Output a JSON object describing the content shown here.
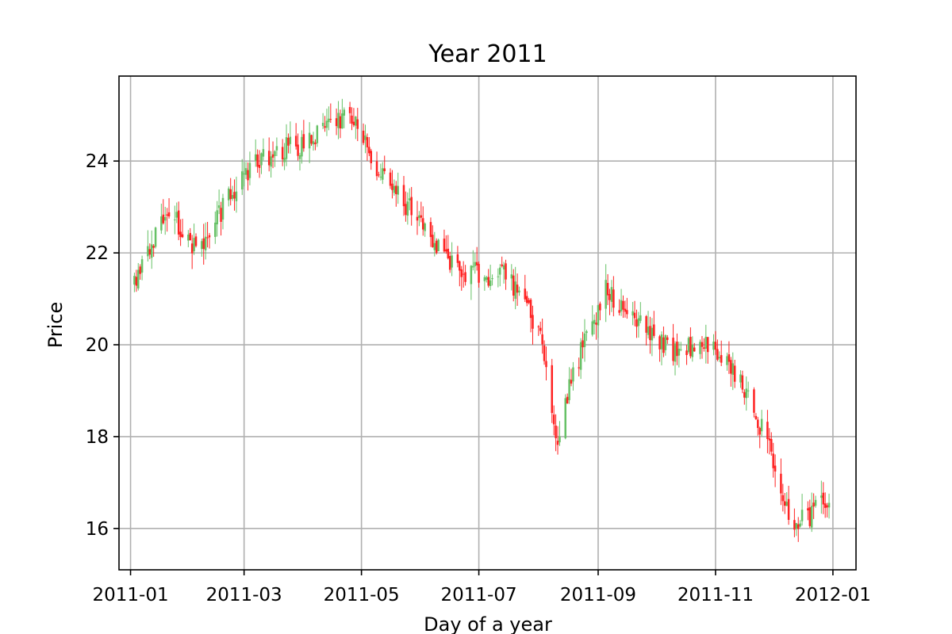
{
  "chart_data": {
    "type": "candlestick",
    "title": "Year 2011",
    "xlabel": "Day of a year",
    "ylabel": "Price",
    "x_range": [
      "2010-12-26",
      "2012-01-13"
    ],
    "ylim": [
      15.1,
      25.85
    ],
    "grid": true,
    "x_ticks": [
      {
        "date": "2011-01-01",
        "label": "2011-01"
      },
      {
        "date": "2011-03-01",
        "label": "2011-03"
      },
      {
        "date": "2011-05-01",
        "label": "2011-05"
      },
      {
        "date": "2011-07-01",
        "label": "2011-07"
      },
      {
        "date": "2011-09-01",
        "label": "2011-09"
      },
      {
        "date": "2011-11-01",
        "label": "2011-11"
      },
      {
        "date": "2012-01-01",
        "label": "2012-01"
      }
    ],
    "y_ticks": [
      16,
      18,
      20,
      22,
      24
    ],
    "colors": {
      "up": "#66c166",
      "down": "#ff2222"
    },
    "key_points": [
      {
        "date": "2011-01-03",
        "price": 21.3
      },
      {
        "date": "2011-01-20",
        "price": 23.0
      },
      {
        "date": "2011-02-05",
        "price": 22.0
      },
      {
        "date": "2011-02-25",
        "price": 23.5
      },
      {
        "date": "2011-03-10",
        "price": 24.1
      },
      {
        "date": "2011-04-01",
        "price": 24.4
      },
      {
        "date": "2011-04-25",
        "price": 25.1
      },
      {
        "date": "2011-05-10",
        "price": 23.7
      },
      {
        "date": "2011-06-01",
        "price": 22.7
      },
      {
        "date": "2011-06-20",
        "price": 21.6
      },
      {
        "date": "2011-07-15",
        "price": 21.5
      },
      {
        "date": "2011-08-01",
        "price": 20.4
      },
      {
        "date": "2011-08-10",
        "price": 17.9
      },
      {
        "date": "2011-08-20",
        "price": 19.5
      },
      {
        "date": "2011-09-05",
        "price": 21.2
      },
      {
        "date": "2011-09-25",
        "price": 20.4
      },
      {
        "date": "2011-10-10",
        "price": 19.8
      },
      {
        "date": "2011-10-30",
        "price": 20.1
      },
      {
        "date": "2011-11-15",
        "price": 19.1
      },
      {
        "date": "2011-11-30",
        "price": 17.7
      },
      {
        "date": "2011-12-10",
        "price": 16.0
      },
      {
        "date": "2011-12-30",
        "price": 16.6
      }
    ]
  }
}
